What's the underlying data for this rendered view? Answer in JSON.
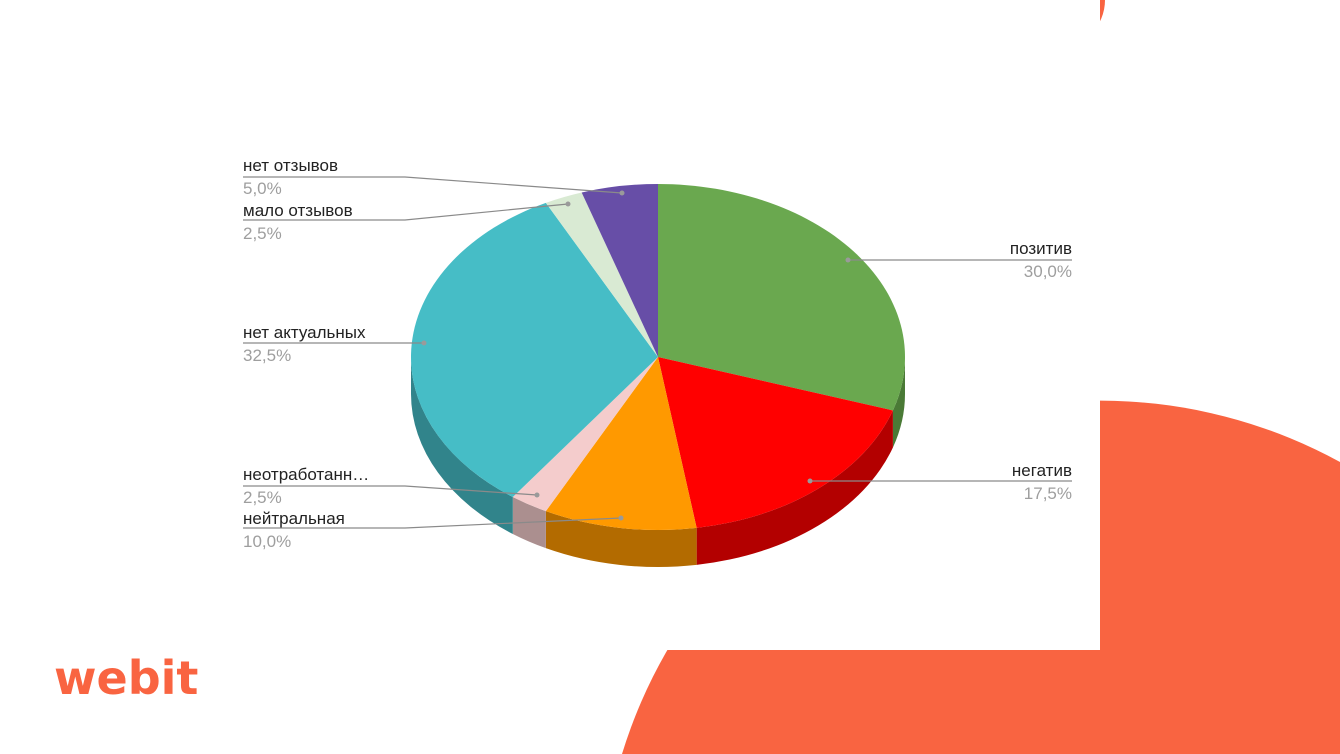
{
  "brand": {
    "logo": "webit",
    "accent": "#f96441"
  },
  "chart_data": {
    "type": "pie",
    "style": "3d",
    "start": "top",
    "direction": "clockwise",
    "slices": [
      {
        "label": "позитив",
        "value": 30.0,
        "pct_label": "30,0%",
        "color": "#6aa84f",
        "side": "#4a7a36"
      },
      {
        "label": "негатив",
        "value": 17.5,
        "pct_label": "17,5%",
        "color": "#ff0000",
        "side": "#b30000"
      },
      {
        "label": "нейтральная",
        "value": 10.0,
        "pct_label": "10,0%",
        "color": "#ff9900",
        "side": "#b36b00"
      },
      {
        "label": "неотработанн…",
        "value": 2.5,
        "pct_label": "2,5%",
        "color": "#f4cccc",
        "side": "#ab8f8f"
      },
      {
        "label": "нет актуальных",
        "value": 32.5,
        "pct_label": "32,5%",
        "color": "#46bdc6",
        "side": "#31848b"
      },
      {
        "label": "мало отзывов",
        "value": 2.5,
        "pct_label": "2,5%",
        "color": "#d9ead3",
        "side": "#98a494"
      },
      {
        "label": "нет отзывов",
        "value": 5.0,
        "pct_label": "5,0%",
        "color": "#674ea7",
        "side": "#483775"
      }
    ]
  }
}
